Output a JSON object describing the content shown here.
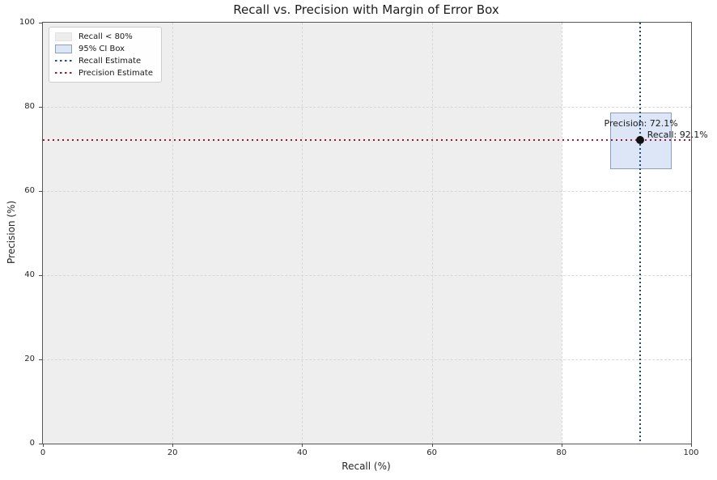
{
  "chart_data": {
    "type": "scatter",
    "title": "Recall vs. Precision with Margin of Error Box",
    "xlabel": "Recall (%)",
    "ylabel": "Precision (%)",
    "xlim": [
      0,
      100
    ],
    "ylim": [
      0,
      100
    ],
    "xticks": [
      0,
      20,
      40,
      60,
      80,
      100
    ],
    "yticks": [
      0,
      20,
      40,
      60,
      80,
      100
    ],
    "grid": true,
    "legend_position": "upper-left",
    "point": {
      "recall": 92.1,
      "precision": 72.1
    },
    "recall_estimate_line": {
      "x": 92.1,
      "style": "dotted"
    },
    "precision_estimate_line": {
      "y": 72.1,
      "style": "dotted"
    },
    "ci_box": {
      "recall_range": [
        87.5,
        96.7
      ],
      "precision_range": [
        65.5,
        78.7
      ]
    },
    "shaded_region": {
      "label": "Recall < 80%",
      "recall_range": [
        0,
        80
      ]
    },
    "annotations": [
      {
        "id": "precision-annotation",
        "text": "Precision: 72.1%"
      },
      {
        "id": "recall-annotation",
        "text": "Recall: 92.1%"
      }
    ],
    "legend": [
      {
        "label": "Recall < 80%",
        "swatch": "patch",
        "fill": "#ededed",
        "border": "#e2e2e2"
      },
      {
        "label": "95% CI Box",
        "swatch": "patch",
        "fill": "#dce6f7",
        "border": "#8aa0c2"
      },
      {
        "label": "Recall Estimate",
        "swatch": "dotted-line",
        "color": "#1f4e79"
      },
      {
        "label": "Precision Estimate",
        "swatch": "dotted-line",
        "color": "#9c1b2e"
      }
    ],
    "colors": {
      "shaded_region": "#eeeeee",
      "ci_box_fill": "#dce6f7",
      "ci_box_border": "#8aa0c2",
      "recall_line": "#1f4e79",
      "precision_line": "#9c1b2e",
      "marker": "#111111",
      "grid": "#d7d7d7",
      "spine": "#565656",
      "text": "#262626"
    }
  }
}
